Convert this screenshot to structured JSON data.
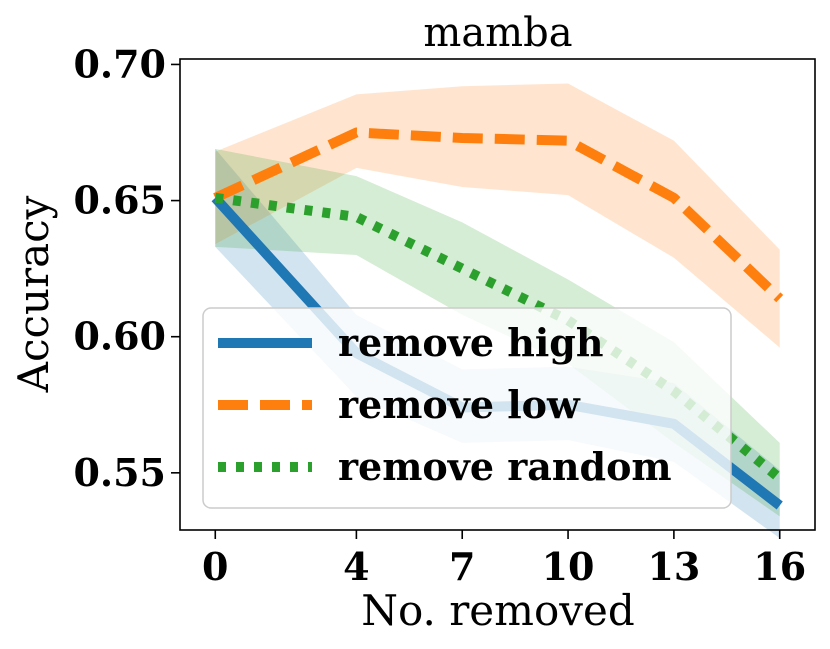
{
  "chart_data": {
    "type": "line",
    "title": "mamba",
    "xlabel": "No. removed",
    "ylabel": "Accuracy",
    "x": [
      0,
      4,
      7,
      10,
      13,
      16
    ],
    "xticks": [
      "0",
      "4",
      "7",
      "10",
      "13",
      "16"
    ],
    "yticks": [
      "0.55",
      "0.60",
      "0.65",
      "0.70"
    ],
    "ytick_values": [
      0.55,
      0.6,
      0.65,
      0.7
    ],
    "xlim": [
      -1,
      17
    ],
    "ylim": [
      0.529,
      0.702
    ],
    "legend_position": "lower-left",
    "series": [
      {
        "name": "remove high",
        "color": "#1f77b4",
        "style": "solid",
        "values": [
          0.651,
          0.594,
          0.574,
          0.575,
          0.568,
          0.538
        ],
        "lower": [
          0.633,
          0.578,
          0.561,
          0.562,
          0.554,
          0.526
        ],
        "upper": [
          0.669,
          0.608,
          0.588,
          0.589,
          0.583,
          0.551
        ]
      },
      {
        "name": "remove low",
        "color": "#ff7f0e",
        "style": "dashed",
        "values": [
          0.651,
          0.675,
          0.673,
          0.672,
          0.651,
          0.614
        ],
        "lower": [
          0.634,
          0.662,
          0.655,
          0.652,
          0.629,
          0.596
        ],
        "upper": [
          0.668,
          0.689,
          0.692,
          0.693,
          0.672,
          0.632
        ]
      },
      {
        "name": "remove random",
        "color": "#2ca02c",
        "style": "dotted",
        "values": [
          0.651,
          0.644,
          0.625,
          0.606,
          0.58,
          0.548
        ],
        "lower": [
          0.633,
          0.63,
          0.608,
          0.59,
          0.561,
          0.534
        ],
        "upper": [
          0.669,
          0.659,
          0.642,
          0.621,
          0.598,
          0.561
        ]
      }
    ]
  }
}
